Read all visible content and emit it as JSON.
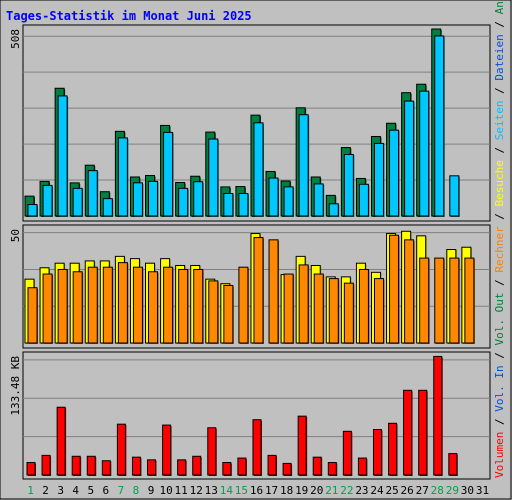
{
  "chart_data": {
    "type": "bar",
    "title": "Tages-Statistik im Monat Juni 2025",
    "categories": [
      "1",
      "2",
      "3",
      "4",
      "5",
      "6",
      "7",
      "8",
      "9",
      "10",
      "11",
      "12",
      "13",
      "14",
      "15",
      "16",
      "17",
      "18",
      "19",
      "20",
      "21",
      "22",
      "23",
      "24",
      "25",
      "26",
      "27",
      "28",
      "29",
      "30",
      "31"
    ],
    "weekend_days": [
      "1",
      "7",
      "8",
      "14",
      "15",
      "21",
      "22",
      "28",
      "29"
    ],
    "panels": [
      {
        "name": "top",
        "ytick": "508",
        "ylim": [
          0,
          508
        ],
        "series": [
          {
            "name": "Anfragen",
            "color": "#008040",
            "values": [
              54,
              94,
              347,
              90,
              138,
              66,
              230,
              106,
              110,
              246,
              91,
              108,
              228,
              79,
              80,
              274,
              121,
              95,
              294,
              106,
              56,
              186,
              102,
              216,
              252,
              335,
              358,
              508,
              0,
              0,
              0
            ]
          },
          {
            "name": "Dateien",
            "color": "#00c8ff",
            "values": [
              42,
              94,
              337,
              86,
              134,
              58,
              223,
              101,
              105,
              238,
              86,
              104,
              220,
              72,
              72,
              264,
              114,
              90,
              286,
              98,
              44,
              178,
              97,
              208,
              244,
              323,
              350,
              500,
              120,
              0,
              0
            ]
          }
        ],
        "right_labels": [
          {
            "text": "Anfragen",
            "color": "#008040"
          },
          {
            "text": "Dateien",
            "color": "#0050e0"
          },
          {
            "text": "Seiten",
            "color": "#00c0ff"
          },
          {
            "text": "Besuche",
            "color": "#ffff00"
          }
        ]
      },
      {
        "name": "middle",
        "ytick": "50",
        "ylim": [
          0,
          50
        ],
        "series": [
          {
            "name": "Besuche",
            "color": "#ffff00",
            "values": [
              28,
              33,
              35,
              35,
              36,
              36,
              38,
              37,
              35,
              37,
              34,
              34,
              28,
              26,
              0,
              48,
              0,
              30,
              38,
              34,
              29,
              29,
              35,
              31,
              48,
              49,
              47,
              0,
              41,
              42,
              0
            ]
          },
          {
            "name": "Rechner",
            "color": "#ff8800",
            "values": [
              26,
              32,
              34,
              33,
              35,
              35,
              37,
              35,
              33,
              35,
              34,
              34,
              29,
              27,
              35,
              48,
              47,
              32,
              36,
              32,
              30,
              28,
              34,
              30,
              49,
              47,
              39,
              39,
              39,
              39,
              0
            ]
          }
        ],
        "right_labels": [
          {
            "text": "Rechner",
            "color": "#ff8000"
          },
          {
            "text": "Vol. Out",
            "color": "#008040"
          },
          {
            "text": "Vol. In",
            "color": "#0050e0"
          }
        ]
      },
      {
        "name": "bottom",
        "ytick": "133.48 KB",
        "ylim": [
          0,
          133.48
        ],
        "series": [
          {
            "name": "Volumen",
            "color": "#ff0000",
            "values": [
              14,
              22,
              76,
              21,
              21,
              16,
              57,
              20,
              17,
              56,
              17,
              21,
              53,
              14,
              19,
              62,
              22,
              13,
              66,
              20,
              14,
              49,
              19,
              51,
              58,
              95,
              95,
              133,
              24,
              0,
              0
            ]
          }
        ],
        "right_labels": [
          {
            "text": "Volumen",
            "color": "#ff0000"
          }
        ]
      }
    ]
  }
}
